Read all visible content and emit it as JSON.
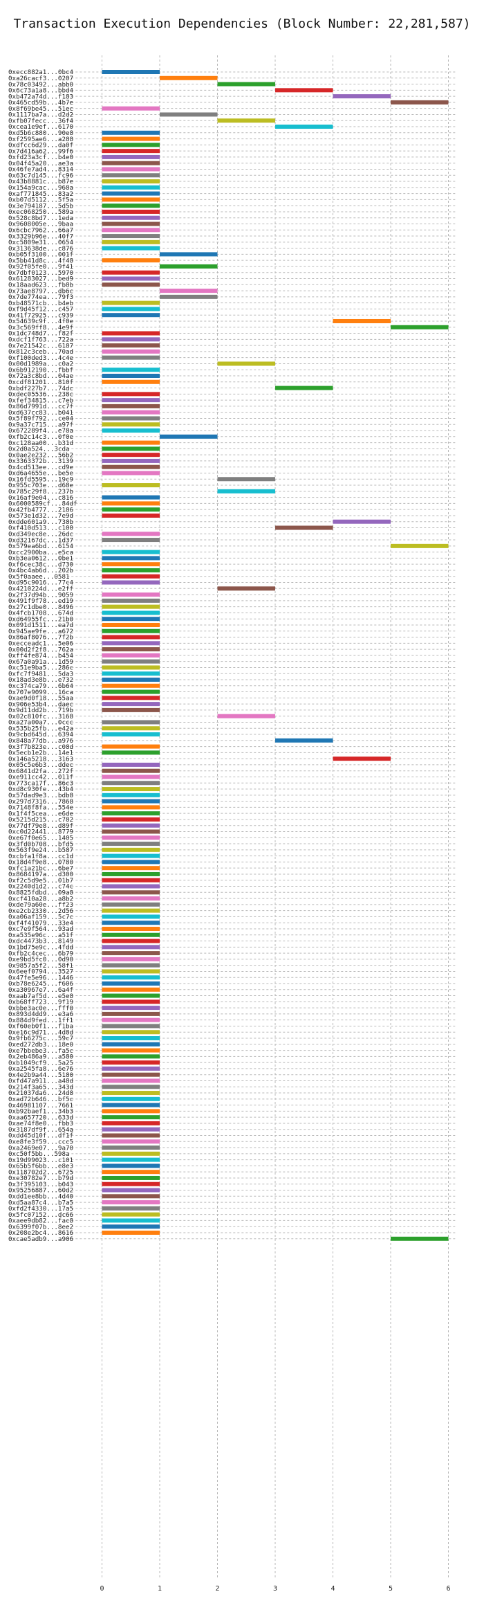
{
  "chart_data": {
    "type": "bar",
    "orientation": "horizontal",
    "title": "Transaction Execution Dependencies (Block Number: 22,281,587)",
    "xlabel": "",
    "ylabel": "",
    "xlim": [
      -1.2,
      6.4
    ],
    "xticks": [
      0,
      1,
      2,
      3,
      4,
      5,
      6
    ],
    "grid": true,
    "colors": [
      "#1f77b4",
      "#ff7f0e",
      "#2ca02c",
      "#d62728",
      "#9467bd",
      "#8c564b",
      "#e377c2",
      "#7f7f7f",
      "#bcbd22",
      "#17becf"
    ],
    "rows": [
      {
        "label": "0xecc882a1...0bc4",
        "start": 0,
        "end": 1
      },
      {
        "label": "0xa26cacf3...0207",
        "start": 1,
        "end": 2
      },
      {
        "label": "0x78c03492...abb0",
        "start": 2,
        "end": 3
      },
      {
        "label": "0x6c73a1a8...bbd4",
        "start": 3,
        "end": 4
      },
      {
        "label": "0xb472a74d...f183",
        "start": 4,
        "end": 5
      },
      {
        "label": "0x465cd59b...4b7e",
        "start": 5,
        "end": 6
      },
      {
        "label": "0x8f69be45...51ec",
        "start": 0,
        "end": 1
      },
      {
        "label": "0x1117ba7a...d2d2",
        "start": 1,
        "end": 2
      },
      {
        "label": "0xfb07fecc...36f4",
        "start": 2,
        "end": 3
      },
      {
        "label": "0xcea1e9ef...6170",
        "start": 3,
        "end": 4
      },
      {
        "label": "0xd5b6c880...90e8",
        "start": 0,
        "end": 1
      },
      {
        "label": "0xf2595ae6...a288",
        "start": 0,
        "end": 1
      },
      {
        "label": "0xdfcc6d29...da0f",
        "start": 0,
        "end": 1
      },
      {
        "label": "0x7d416a62...99f6",
        "start": 0,
        "end": 1
      },
      {
        "label": "0xfd23a3cf...b4e0",
        "start": 0,
        "end": 1
      },
      {
        "label": "0x04f45a20...ae3a",
        "start": 0,
        "end": 1
      },
      {
        "label": "0x46fe7ad4...8314",
        "start": 0,
        "end": 1
      },
      {
        "label": "0x63c7d145...fc96",
        "start": 0,
        "end": 1
      },
      {
        "label": "0x43b8881c...b87e",
        "start": 0,
        "end": 1
      },
      {
        "label": "0x154a9cac...968a",
        "start": 0,
        "end": 1
      },
      {
        "label": "0xaf771845...83a2",
        "start": 0,
        "end": 1
      },
      {
        "label": "0xb07d5112...5f5a",
        "start": 0,
        "end": 1
      },
      {
        "label": "0x3e794187...5d5b",
        "start": 0,
        "end": 1
      },
      {
        "label": "0xec068250...589a",
        "start": 0,
        "end": 1
      },
      {
        "label": "0x528c8bd7...1eda",
        "start": 0,
        "end": 1
      },
      {
        "label": "0x9608005e...9baa",
        "start": 0,
        "end": 1
      },
      {
        "label": "0x6cbc7962...66a7",
        "start": 0,
        "end": 1
      },
      {
        "label": "0x3329b96e...40f7",
        "start": 0,
        "end": 1
      },
      {
        "label": "0xc5809e31...0654",
        "start": 0,
        "end": 1
      },
      {
        "label": "0x313638de...c876",
        "start": 0,
        "end": 1
      },
      {
        "label": "0xb05f3100...001f",
        "start": 1,
        "end": 2
      },
      {
        "label": "0x5bb41d8c...4f48",
        "start": 0,
        "end": 1
      },
      {
        "label": "0x92f05fe0...9f41",
        "start": 1,
        "end": 2
      },
      {
        "label": "0x7dbf0123...5970",
        "start": 0,
        "end": 1
      },
      {
        "label": "0x61283027...bed9",
        "start": 0,
        "end": 1
      },
      {
        "label": "0x18aad623...fb8b",
        "start": 0,
        "end": 1
      },
      {
        "label": "0x73ae8797...db6c",
        "start": 1,
        "end": 2
      },
      {
        "label": "0x7de774ea...79f3",
        "start": 1,
        "end": 2
      },
      {
        "label": "0xb48571cb...b4eb",
        "start": 0,
        "end": 1
      },
      {
        "label": "0xf9d45f12...c457",
        "start": 0,
        "end": 1
      },
      {
        "label": "0x41f72925...c939",
        "start": 0,
        "end": 1
      },
      {
        "label": "0x54639c9f...4f0e",
        "start": 4,
        "end": 5
      },
      {
        "label": "0x3c569ff8...4e9f",
        "start": 5,
        "end": 6
      },
      {
        "label": "0x1dc748d7...f82f",
        "start": 0,
        "end": 1
      },
      {
        "label": "0xdcf1f763...722a",
        "start": 0,
        "end": 1
      },
      {
        "label": "0x7e21542c...6187",
        "start": 0,
        "end": 1
      },
      {
        "label": "0x812c3ceb...70ad",
        "start": 0,
        "end": 1
      },
      {
        "label": "0xf100ded3...4c4e",
        "start": 0,
        "end": 1
      },
      {
        "label": "0x00d1989a...c0a2",
        "start": 2,
        "end": 3
      },
      {
        "label": "0x6b912190...fbbf",
        "start": 0,
        "end": 1
      },
      {
        "label": "0x72a3c8bd...04ae",
        "start": 0,
        "end": 1
      },
      {
        "label": "0xcdf81201...810f",
        "start": 0,
        "end": 1
      },
      {
        "label": "0xbdf227b7...74dc",
        "start": 3,
        "end": 4
      },
      {
        "label": "0xdec05536...238c",
        "start": 0,
        "end": 1
      },
      {
        "label": "0xfef34815...c7eb",
        "start": 0,
        "end": 1
      },
      {
        "label": "0x86d7991d...cc7f",
        "start": 0,
        "end": 1
      },
      {
        "label": "0xd637cc83...b041",
        "start": 0,
        "end": 1
      },
      {
        "label": "0x5f89f792...ce04",
        "start": 0,
        "end": 1
      },
      {
        "label": "0x9a37c715...a97f",
        "start": 0,
        "end": 1
      },
      {
        "label": "0x672289f4...e78a",
        "start": 0,
        "end": 1
      },
      {
        "label": "0xfb2c14c3...0f0e",
        "start": 1,
        "end": 2
      },
      {
        "label": "0xc128aa00...b31d",
        "start": 0,
        "end": 1
      },
      {
        "label": "0x2d0a524...3cda",
        "start": 0,
        "end": 1
      },
      {
        "label": "0x0ae2e232...56b2",
        "start": 0,
        "end": 1
      },
      {
        "label": "0x3363372b...3139",
        "start": 0,
        "end": 1
      },
      {
        "label": "0x4cd513ee...cd9e",
        "start": 0,
        "end": 1
      },
      {
        "label": "0xd6a4655e...be5e",
        "start": 0,
        "end": 1
      },
      {
        "label": "0x16fd5595...19c9",
        "start": 2,
        "end": 3
      },
      {
        "label": "0x955c703e...d68e",
        "start": 0,
        "end": 1
      },
      {
        "label": "0x785c29f8...237b",
        "start": 2,
        "end": 3
      },
      {
        "label": "0x16af9e04...c816",
        "start": 0,
        "end": 1
      },
      {
        "label": "0x6000589cf...84df",
        "start": 0,
        "end": 1
      },
      {
        "label": "0x42fb4777...2186",
        "start": 0,
        "end": 1
      },
      {
        "label": "0x573e1d32...7e9d",
        "start": 0,
        "end": 1
      },
      {
        "label": "0xdde601a9...738b",
        "start": 4,
        "end": 5
      },
      {
        "label": "0xf410d513...c100",
        "start": 3,
        "end": 4
      },
      {
        "label": "0xd349ec8e...26dc",
        "start": 0,
        "end": 1
      },
      {
        "label": "0xd32167dc...1d37",
        "start": 0,
        "end": 1
      },
      {
        "label": "0x579ea6bd...6154",
        "start": 5,
        "end": 6
      },
      {
        "label": "0xcc2900ba...e5ca",
        "start": 0,
        "end": 1
      },
      {
        "label": "0xb3ea0612...0be1",
        "start": 0,
        "end": 1
      },
      {
        "label": "0xf6cec38c...d730",
        "start": 0,
        "end": 1
      },
      {
        "label": "0x4bc4ab6d...202b",
        "start": 0,
        "end": 1
      },
      {
        "label": "0x5f0aaee...0581",
        "start": 0,
        "end": 1
      },
      {
        "label": "0xd95c9016...77c4",
        "start": 0,
        "end": 1
      },
      {
        "label": "0x4210224d...e2ff",
        "start": 2,
        "end": 3
      },
      {
        "label": "0x2f37d94b...9059",
        "start": 0,
        "end": 1
      },
      {
        "label": "0x491f9f78...ed19",
        "start": 0,
        "end": 1
      },
      {
        "label": "0x27c1dbe0...8496",
        "start": 0,
        "end": 1
      },
      {
        "label": "0x4fcb1708...674d",
        "start": 0,
        "end": 1
      },
      {
        "label": "0xd64955fc...21b0",
        "start": 0,
        "end": 1
      },
      {
        "label": "0x091d1511...ea7d",
        "start": 0,
        "end": 1
      },
      {
        "label": "0x945ae9fe...a672",
        "start": 0,
        "end": 1
      },
      {
        "label": "0x86af8076...7f2b",
        "start": 0,
        "end": 1
      },
      {
        "label": "0xecceadc1...5e06",
        "start": 0,
        "end": 1
      },
      {
        "label": "0x00d2f2f8...762a",
        "start": 0,
        "end": 1
      },
      {
        "label": "0xff4fe874...b454",
        "start": 0,
        "end": 1
      },
      {
        "label": "0x67a0a91a...1d59",
        "start": 0,
        "end": 1
      },
      {
        "label": "0xc51e9ba5...286c",
        "start": 0,
        "end": 1
      },
      {
        "label": "0xfc7f9481...5da3",
        "start": 0,
        "end": 1
      },
      {
        "label": "0x18ad3e8b...e732",
        "start": 0,
        "end": 1
      },
      {
        "label": "0xc374ca79...6b64",
        "start": 0,
        "end": 1
      },
      {
        "label": "0x707e9099...16ca",
        "start": 0,
        "end": 1
      },
      {
        "label": "0xae9d0f18...55aa",
        "start": 0,
        "end": 1
      },
      {
        "label": "0x906e53b4...daec",
        "start": 0,
        "end": 1
      },
      {
        "label": "0x9d11dd2b...719b",
        "start": 0,
        "end": 1
      },
      {
        "label": "0x02c810fc...3168",
        "start": 2,
        "end": 3
      },
      {
        "label": "0xa27a00a7...0ccc",
        "start": 0,
        "end": 1
      },
      {
        "label": "0x535b25fb...e42a",
        "start": 0,
        "end": 1
      },
      {
        "label": "0x9cbd645d...6394",
        "start": 0,
        "end": 1
      },
      {
        "label": "0x848a77db...a976",
        "start": 3,
        "end": 4
      },
      {
        "label": "0x3f7b823e...c08d",
        "start": 0,
        "end": 1
      },
      {
        "label": "0x5ecb1e2b...14e1",
        "start": 0,
        "end": 1
      },
      {
        "label": "0x146a5218...3163",
        "start": 4,
        "end": 5
      },
      {
        "label": "0x05c5e6b3...ddec",
        "start": 0,
        "end": 1
      },
      {
        "label": "0x6841d2fa...272f",
        "start": 0,
        "end": 1
      },
      {
        "label": "0xe911cc42...011f",
        "start": 0,
        "end": 1
      },
      {
        "label": "0x773ca17f...86c3",
        "start": 0,
        "end": 1
      },
      {
        "label": "0xd8c930fe...43b4",
        "start": 0,
        "end": 1
      },
      {
        "label": "0x57dad9e3...bdb8",
        "start": 0,
        "end": 1
      },
      {
        "label": "0x297d7316...7868",
        "start": 0,
        "end": 1
      },
      {
        "label": "0x7148f8fa...554e",
        "start": 0,
        "end": 1
      },
      {
        "label": "0x1f4f5cea...e6de",
        "start": 0,
        "end": 1
      },
      {
        "label": "0x5215d215...c782",
        "start": 0,
        "end": 1
      },
      {
        "label": "0x77df79e8...d89f",
        "start": 0,
        "end": 1
      },
      {
        "label": "0xc0d22441...8779",
        "start": 0,
        "end": 1
      },
      {
        "label": "0xe67f0e65...1405",
        "start": 0,
        "end": 1
      },
      {
        "label": "0x3fd0b708...bfd5",
        "start": 0,
        "end": 1
      },
      {
        "label": "0x563f9e24...b587",
        "start": 0,
        "end": 1
      },
      {
        "label": "0xcbfa1f8a...cc1d",
        "start": 0,
        "end": 1
      },
      {
        "label": "0x18d4f9e8...0780",
        "start": 0,
        "end": 1
      },
      {
        "label": "0xfc1a21bc...6be7",
        "start": 0,
        "end": 1
      },
      {
        "label": "0x8684197a...d300",
        "start": 0,
        "end": 1
      },
      {
        "label": "0xf2c5d9e5...01b7",
        "start": 0,
        "end": 1
      },
      {
        "label": "0x2240d1d2...c74c",
        "start": 0,
        "end": 1
      },
      {
        "label": "0x8825fdbd...09a8",
        "start": 0,
        "end": 1
      },
      {
        "label": "0xcf410a28...a8b2",
        "start": 0,
        "end": 1
      },
      {
        "label": "0xde79a60e...ff23",
        "start": 0,
        "end": 1
      },
      {
        "label": "0xe2cb2330...2d56",
        "start": 0,
        "end": 1
      },
      {
        "label": "0xa06af159...5c7c",
        "start": 0,
        "end": 1
      },
      {
        "label": "0xf4f41079...33e4",
        "start": 0,
        "end": 1
      },
      {
        "label": "0xc7e9f564...93ad",
        "start": 0,
        "end": 1
      },
      {
        "label": "0xa535e96c...a51f",
        "start": 0,
        "end": 1
      },
      {
        "label": "0xdc4473b3...8149",
        "start": 0,
        "end": 1
      },
      {
        "label": "0x1bd75e9c...4fdd",
        "start": 0,
        "end": 1
      },
      {
        "label": "0xfb2c4cec...6b79",
        "start": 0,
        "end": 1
      },
      {
        "label": "0xe9bd5fc0...0d90",
        "start": 0,
        "end": 1
      },
      {
        "label": "0x9857a5f2...58f1",
        "start": 0,
        "end": 1
      },
      {
        "label": "0x6eef0794...3527",
        "start": 0,
        "end": 1
      },
      {
        "label": "0x47fe5e96...1446",
        "start": 0,
        "end": 1
      },
      {
        "label": "0xb78e6245...f606",
        "start": 0,
        "end": 1
      },
      {
        "label": "0xa30967e7...6a4f",
        "start": 0,
        "end": 1
      },
      {
        "label": "0xaab7af5d...e5e8",
        "start": 0,
        "end": 1
      },
      {
        "label": "0xb68ff723...9f19",
        "start": 0,
        "end": 1
      },
      {
        "label": "0xbbe3ac0e...fff0",
        "start": 0,
        "end": 1
      },
      {
        "label": "0x893d4dd9...e3a6",
        "start": 0,
        "end": 1
      },
      {
        "label": "0x884d9fed...1ff1",
        "start": 0,
        "end": 1
      },
      {
        "label": "0xf60eb0f1...f1ba",
        "start": 0,
        "end": 1
      },
      {
        "label": "0xe16c9d71...4d8d",
        "start": 0,
        "end": 1
      },
      {
        "label": "0x9fb6275c...59c7",
        "start": 0,
        "end": 1
      },
      {
        "label": "0xed272db3...18e0",
        "start": 0,
        "end": 1
      },
      {
        "label": "0xe7bbebe3...fa5c",
        "start": 0,
        "end": 1
      },
      {
        "label": "0x2eb486a9...a580",
        "start": 0,
        "end": 1
      },
      {
        "label": "0xb1049cf9...5a25",
        "start": 0,
        "end": 1
      },
      {
        "label": "0xa2545fa8...6e76",
        "start": 0,
        "end": 1
      },
      {
        "label": "0x4e2b9a44...5180",
        "start": 0,
        "end": 1
      },
      {
        "label": "0xfd47a911...a48d",
        "start": 0,
        "end": 1
      },
      {
        "label": "0x214f3a65...343d",
        "start": 0,
        "end": 1
      },
      {
        "label": "0x21037da6...24d8",
        "start": 0,
        "end": 1
      },
      {
        "label": "0xad72b646...bf5c",
        "start": 0,
        "end": 1
      },
      {
        "label": "0x46981107...7661",
        "start": 0,
        "end": 1
      },
      {
        "label": "0xb92baef1...34b3",
        "start": 0,
        "end": 1
      },
      {
        "label": "0xaa657720...633d",
        "start": 0,
        "end": 1
      },
      {
        "label": "0xae74f8e0...fbb3",
        "start": 0,
        "end": 1
      },
      {
        "label": "0x3187df9f...654a",
        "start": 0,
        "end": 1
      },
      {
        "label": "0xdd45d10f...df1f",
        "start": 0,
        "end": 1
      },
      {
        "label": "0xe8fe3f59...ccc5",
        "start": 0,
        "end": 1
      },
      {
        "label": "0xa2469e07...9a70",
        "start": 0,
        "end": 1
      },
      {
        "label": "0xc50f5bb...598a",
        "start": 0,
        "end": 1
      },
      {
        "label": "0x19d99023...c101",
        "start": 0,
        "end": 1
      },
      {
        "label": "0x65b5f6bb...e8e3",
        "start": 0,
        "end": 1
      },
      {
        "label": "0x118702d2...6725",
        "start": 0,
        "end": 1
      },
      {
        "label": "0xe30782e7...b79d",
        "start": 0,
        "end": 1
      },
      {
        "label": "0x3f395103...b043",
        "start": 0,
        "end": 1
      },
      {
        "label": "0x95256887...60d2",
        "start": 0,
        "end": 1
      },
      {
        "label": "0xdd1ee8bb...4d40",
        "start": 0,
        "end": 1
      },
      {
        "label": "0xd5aa87c4...b7a5",
        "start": 0,
        "end": 1
      },
      {
        "label": "0xfd2f4330...17a5",
        "start": 0,
        "end": 1
      },
      {
        "label": "0x5fc07152...dc66",
        "start": 0,
        "end": 1
      },
      {
        "label": "0xaee9db82...fac8",
        "start": 0,
        "end": 1
      },
      {
        "label": "0x6399f07b...8ee2",
        "start": 0,
        "end": 1
      },
      {
        "label": "0x208e2bc4...8616",
        "start": 0,
        "end": 1
      },
      {
        "label": "0xcae5adb9...a906",
        "start": 5,
        "end": 6
      }
    ]
  }
}
